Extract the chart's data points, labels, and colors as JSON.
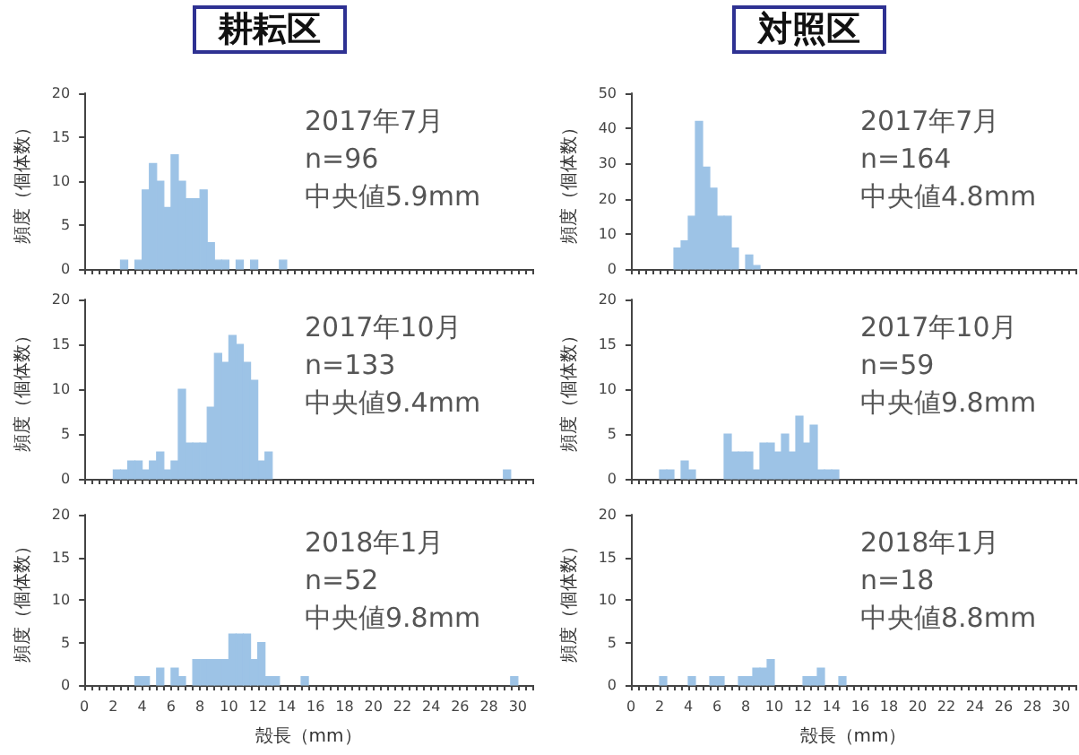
{
  "chart_data": [
    {
      "type": "histogram",
      "title": "耕耘区",
      "ylabel": "頻度（個体数）",
      "color": "#9dc3e6",
      "bins": [
        0,
        0.5,
        1,
        1.5,
        2,
        2.5,
        3,
        3.5,
        4,
        4.5,
        5,
        5.5,
        6,
        6.5,
        7,
        7.5,
        8,
        8.5,
        9,
        9.5,
        10,
        10.5,
        11,
        11.5,
        12,
        12.5,
        13,
        13.5,
        14,
        14.5,
        15,
        15.5,
        16,
        16.5,
        17,
        17.5,
        18,
        18.5,
        19,
        19.5,
        20,
        20.5,
        21,
        21.5,
        22,
        22.5,
        23,
        23.5,
        24,
        24.5,
        25,
        25.5,
        26,
        26.5,
        27,
        27.5,
        28,
        28.5,
        29,
        29.5,
        30,
        30.5,
        31
      ],
      "values": [
        0,
        0,
        0,
        0,
        0,
        1,
        0,
        1,
        9,
        12,
        10,
        7,
        13,
        10,
        8,
        8,
        9,
        3,
        1,
        1,
        0,
        1,
        0,
        1,
        0,
        0,
        0,
        1,
        0,
        0,
        0,
        0,
        0,
        0,
        0,
        0,
        0,
        0,
        0,
        0,
        0,
        0,
        0,
        0,
        0,
        0,
        0,
        0,
        0,
        0,
        0,
        0,
        0,
        0,
        0,
        0,
        0,
        0,
        0,
        0,
        0,
        0
      ],
      "xlim": [
        0,
        31
      ],
      "xticks": [
        0,
        2,
        4,
        6,
        8,
        10,
        12,
        14,
        16,
        18,
        20,
        22,
        24,
        26,
        28,
        30
      ],
      "ylim": [
        0,
        20
      ],
      "yticks": [
        0,
        5,
        10,
        15,
        20
      ],
      "tick_labels": "y",
      "annotations": [
        "2017年7月",
        "n=96",
        "中央値5.9mm"
      ]
    },
    {
      "type": "histogram",
      "title": "対照区",
      "ylabel": "頻度（個体数）",
      "color": "#9dc3e6",
      "bins": [
        0,
        0.5,
        1,
        1.5,
        2,
        2.5,
        3,
        3.5,
        4,
        4.5,
        5,
        5.5,
        6,
        6.5,
        7,
        7.5,
        8,
        8.5,
        9,
        9.5,
        10,
        10.5,
        11,
        11.5,
        12,
        12.5,
        13,
        13.5,
        14,
        14.5,
        15,
        15.5,
        16,
        16.5,
        17,
        17.5,
        18,
        18.5,
        19,
        19.5,
        20,
        20.5,
        21,
        21.5,
        22,
        22.5,
        23,
        23.5,
        24,
        24.5,
        25,
        25.5,
        26,
        26.5,
        27,
        27.5,
        28,
        28.5,
        29,
        29.5,
        30,
        30.5,
        31
      ],
      "values": [
        0,
        0,
        0,
        0,
        0,
        0,
        6,
        8,
        15,
        42,
        29,
        23,
        15,
        15,
        6,
        0,
        4,
        1,
        0,
        0,
        0,
        0,
        0,
        0,
        0,
        0,
        0,
        0,
        0,
        0,
        0,
        0,
        0,
        0,
        0,
        0,
        0,
        0,
        0,
        0,
        0,
        0,
        0,
        0,
        0,
        0,
        0,
        0,
        0,
        0,
        0,
        0,
        0,
        0,
        0,
        0,
        0,
        0,
        0,
        0,
        0,
        0
      ],
      "xlim": [
        0,
        31
      ],
      "xticks": [
        0,
        2,
        4,
        6,
        8,
        10,
        12,
        14,
        16,
        18,
        20,
        22,
        24,
        26,
        28,
        30
      ],
      "ylim": [
        0,
        50
      ],
      "yticks": [
        0,
        10,
        20,
        30,
        40,
        50
      ],
      "tick_labels": "y",
      "annotations": [
        "2017年7月",
        "n=164",
        "中央値4.8mm"
      ]
    },
    {
      "type": "histogram",
      "ylabel": "頻度（個体数）",
      "color": "#9dc3e6",
      "bins": [
        0,
        0.5,
        1,
        1.5,
        2,
        2.5,
        3,
        3.5,
        4,
        4.5,
        5,
        5.5,
        6,
        6.5,
        7,
        7.5,
        8,
        8.5,
        9,
        9.5,
        10,
        10.5,
        11,
        11.5,
        12,
        12.5,
        13,
        13.5,
        14,
        14.5,
        15,
        15.5,
        16,
        16.5,
        17,
        17.5,
        18,
        18.5,
        19,
        19.5,
        20,
        20.5,
        21,
        21.5,
        22,
        22.5,
        23,
        23.5,
        24,
        24.5,
        25,
        25.5,
        26,
        26.5,
        27,
        27.5,
        28,
        28.5,
        29,
        29.5,
        30,
        30.5,
        31
      ],
      "values": [
        0,
        0,
        0,
        0,
        1,
        1,
        2,
        2,
        1,
        2,
        3,
        1,
        2,
        10,
        4,
        4,
        4,
        8,
        14,
        13,
        16,
        15,
        13,
        11,
        2,
        3,
        0,
        0,
        0,
        0,
        0,
        0,
        0,
        0,
        0,
        0,
        0,
        0,
        0,
        0,
        0,
        0,
        0,
        0,
        0,
        0,
        0,
        0,
        0,
        0,
        0,
        0,
        0,
        0,
        0,
        0,
        0,
        0,
        1,
        0,
        0,
        0
      ],
      "xlim": [
        0,
        31
      ],
      "xticks": [
        0,
        2,
        4,
        6,
        8,
        10,
        12,
        14,
        16,
        18,
        20,
        22,
        24,
        26,
        28,
        30
      ],
      "ylim": [
        0,
        20
      ],
      "yticks": [
        0,
        5,
        10,
        15,
        20
      ],
      "tick_labels": "y",
      "annotations": [
        "2017年10月",
        "n=133",
        "中央値9.4mm"
      ]
    },
    {
      "type": "histogram",
      "ylabel": "頻度（個体数）",
      "color": "#9dc3e6",
      "bins": [
        0,
        0.5,
        1,
        1.5,
        2,
        2.5,
        3,
        3.5,
        4,
        4.5,
        5,
        5.5,
        6,
        6.5,
        7,
        7.5,
        8,
        8.5,
        9,
        9.5,
        10,
        10.5,
        11,
        11.5,
        12,
        12.5,
        13,
        13.5,
        14,
        14.5,
        15,
        15.5,
        16,
        16.5,
        17,
        17.5,
        18,
        18.5,
        19,
        19.5,
        20,
        20.5,
        21,
        21.5,
        22,
        22.5,
        23,
        23.5,
        24,
        24.5,
        25,
        25.5,
        26,
        26.5,
        27,
        27.5,
        28,
        28.5,
        29,
        29.5,
        30,
        30.5,
        31
      ],
      "values": [
        0,
        0,
        0,
        0,
        1,
        1,
        0,
        2,
        1,
        0,
        0,
        0,
        0,
        5,
        3,
        3,
        3,
        1,
        4,
        4,
        3,
        5,
        3,
        7,
        4,
        6,
        1,
        1,
        1,
        0,
        0,
        0,
        0,
        0,
        0,
        0,
        0,
        0,
        0,
        0,
        0,
        0,
        0,
        0,
        0,
        0,
        0,
        0,
        0,
        0,
        0,
        0,
        0,
        0,
        0,
        0,
        0,
        0,
        0,
        0,
        0,
        0
      ],
      "xlim": [
        0,
        31
      ],
      "xticks": [
        0,
        2,
        4,
        6,
        8,
        10,
        12,
        14,
        16,
        18,
        20,
        22,
        24,
        26,
        28,
        30
      ],
      "ylim": [
        0,
        20
      ],
      "yticks": [
        0,
        5,
        10,
        15,
        20
      ],
      "tick_labels": "y",
      "annotations": [
        "2017年10月",
        "n=59",
        "中央値9.8mm"
      ]
    },
    {
      "type": "histogram",
      "xlabel": "殻長（mm）",
      "ylabel": "頻度（個体数）",
      "color": "#9dc3e6",
      "bins": [
        0,
        0.5,
        1,
        1.5,
        2,
        2.5,
        3,
        3.5,
        4,
        4.5,
        5,
        5.5,
        6,
        6.5,
        7,
        7.5,
        8,
        8.5,
        9,
        9.5,
        10,
        10.5,
        11,
        11.5,
        12,
        12.5,
        13,
        13.5,
        14,
        14.5,
        15,
        15.5,
        16,
        16.5,
        17,
        17.5,
        18,
        18.5,
        19,
        19.5,
        20,
        20.5,
        21,
        21.5,
        22,
        22.5,
        23,
        23.5,
        24,
        24.5,
        25,
        25.5,
        26,
        26.5,
        27,
        27.5,
        28,
        28.5,
        29,
        29.5,
        30,
        30.5,
        31
      ],
      "values": [
        0,
        0,
        0,
        0,
        0,
        0,
        0,
        1,
        1,
        0,
        2,
        0,
        2,
        1,
        0,
        3,
        3,
        3,
        3,
        3,
        6,
        6,
        6,
        3,
        5,
        1,
        1,
        0,
        0,
        0,
        1,
        0,
        0,
        0,
        0,
        0,
        0,
        0,
        0,
        0,
        0,
        0,
        0,
        0,
        0,
        0,
        0,
        0,
        0,
        0,
        0,
        0,
        0,
        0,
        0,
        0,
        0,
        0,
        0,
        1,
        0,
        0
      ],
      "xlim": [
        0,
        31
      ],
      "xticks": [
        0,
        2,
        4,
        6,
        8,
        10,
        12,
        14,
        16,
        18,
        20,
        22,
        24,
        26,
        28,
        30
      ],
      "ylim": [
        0,
        20
      ],
      "yticks": [
        0,
        5,
        10,
        15,
        20
      ],
      "annotations": [
        "2018年1月",
        "n=52",
        "中央値9.8mm"
      ]
    },
    {
      "type": "histogram",
      "xlabel": "殻長（mm）",
      "ylabel": "頻度（個体数）",
      "color": "#9dc3e6",
      "bins": [
        0,
        0.5,
        1,
        1.5,
        2,
        2.5,
        3,
        3.5,
        4,
        4.5,
        5,
        5.5,
        6,
        6.5,
        7,
        7.5,
        8,
        8.5,
        9,
        9.5,
        10,
        10.5,
        11,
        11.5,
        12,
        12.5,
        13,
        13.5,
        14,
        14.5,
        15,
        15.5,
        16,
        16.5,
        17,
        17.5,
        18,
        18.5,
        19,
        19.5,
        20,
        20.5,
        21,
        21.5,
        22,
        22.5,
        23,
        23.5,
        24,
        24.5,
        25,
        25.5,
        26,
        26.5,
        27,
        27.5,
        28,
        28.5,
        29,
        29.5,
        30,
        30.5,
        31
      ],
      "values": [
        0,
        0,
        0,
        0,
        1,
        0,
        0,
        0,
        1,
        0,
        0,
        1,
        1,
        0,
        0,
        1,
        1,
        2,
        2,
        3,
        0,
        0,
        0,
        0,
        1,
        1,
        2,
        0,
        0,
        1,
        0,
        0,
        0,
        0,
        0,
        0,
        0,
        0,
        0,
        0,
        0,
        0,
        0,
        0,
        0,
        0,
        0,
        0,
        0,
        0,
        0,
        0,
        0,
        0,
        0,
        0,
        0,
        0,
        0,
        0,
        0,
        0
      ],
      "xlim": [
        0,
        31
      ],
      "xticks": [
        0,
        2,
        4,
        6,
        8,
        10,
        12,
        14,
        16,
        18,
        20,
        22,
        24,
        26,
        28,
        30
      ],
      "ylim": [
        0,
        20
      ],
      "yticks": [
        0,
        5,
        10,
        15,
        20
      ],
      "annotations": [
        "2018年1月",
        "n=18",
        "中央値8.8mm"
      ]
    }
  ]
}
